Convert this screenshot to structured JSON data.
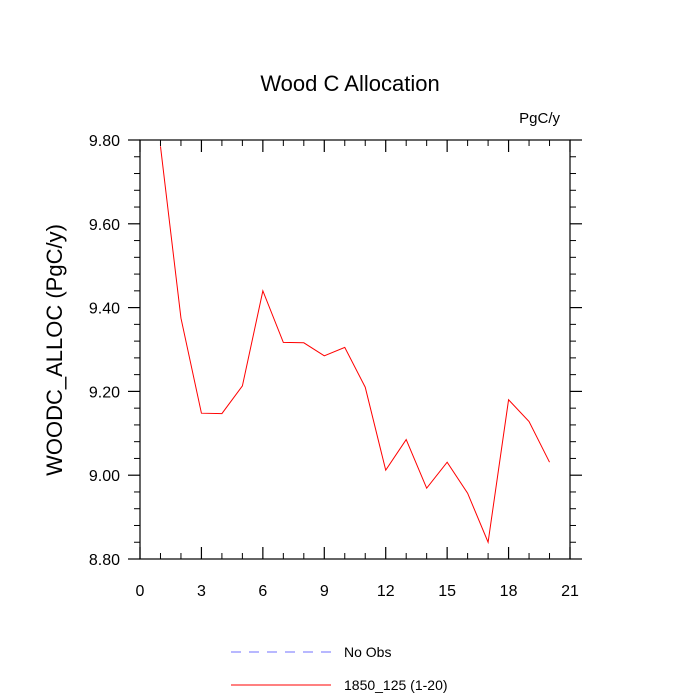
{
  "chart_data": {
    "type": "line",
    "title": "Wood C Allocation",
    "units_label": "PgC/y",
    "xlabel": "",
    "ylabel": "WOODC_ALLOC  (PgC/y)",
    "xlim": [
      0,
      21
    ],
    "ylim": [
      8.8,
      9.8
    ],
    "x_ticks": [
      0,
      3,
      6,
      9,
      12,
      15,
      18,
      21
    ],
    "x_tick_labels": [
      "0",
      "3",
      "6",
      "9",
      "12",
      "15",
      "18",
      "21"
    ],
    "y_ticks": [
      8.8,
      9.0,
      9.2,
      9.4,
      9.6,
      9.8
    ],
    "y_tick_labels": [
      "8.80",
      "9.00",
      "9.20",
      "9.40",
      "9.60",
      "9.80"
    ],
    "grid": false,
    "series": [
      {
        "name": "1850_125 (1-20)",
        "color": "#ff0000",
        "dash": "solid",
        "x": [
          1,
          2,
          3,
          4,
          5,
          6,
          7,
          8,
          9,
          10,
          11,
          12,
          13,
          14,
          15,
          16,
          17,
          18,
          19,
          20
        ],
        "values": [
          9.785,
          9.375,
          9.148,
          9.147,
          9.213,
          9.44,
          9.317,
          9.316,
          9.285,
          9.305,
          9.21,
          9.012,
          9.085,
          8.969,
          9.031,
          8.957,
          8.84,
          9.18,
          9.128,
          9.031
        ]
      },
      {
        "name": "No Obs",
        "color": "#7070ff",
        "dash": "dashed",
        "x": [],
        "values": []
      }
    ],
    "legend": [
      {
        "label": "No Obs",
        "color": "#7070ff",
        "style": "dashed"
      },
      {
        "label": "1850_125 (1-20)",
        "color": "#ff0000",
        "style": "solid"
      }
    ],
    "legend_position": "bottom-center"
  }
}
